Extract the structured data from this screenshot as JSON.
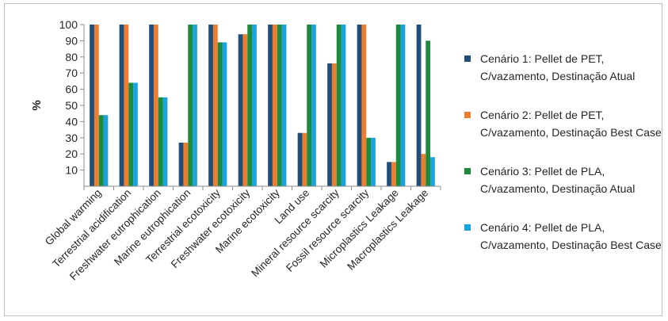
{
  "chart_data": {
    "type": "bar",
    "title": "",
    "xlabel": "",
    "ylabel": "%",
    "ylim": [
      0,
      100
    ],
    "yticks": [
      10,
      20,
      30,
      40,
      50,
      60,
      70,
      80,
      90,
      100
    ],
    "grid": false,
    "legend_position": "right",
    "categories": [
      "Global warming",
      "Terrestrial acidification",
      "Freshwater eutrophication",
      "Marine eutrophication",
      "Terrestrial ecotoxicity",
      "Freshwater ecotoxicity",
      "Marine ecotoxicity",
      "Land use",
      "Mineral resource scarcity",
      "Fossil resource scarcity",
      "Microplastics Leakage",
      "Macroplastics Leakage"
    ],
    "series": [
      {
        "name": "Cenário 1: Pellet de PET, C/vazamento,  Destinação Atual",
        "color": "#1f4e79",
        "values": [
          100,
          100,
          100,
          27,
          100,
          94,
          100,
          33,
          76,
          100,
          15,
          100
        ]
      },
      {
        "name": "Cenário 2: Pellet de PET, C/vazamento,  Destinação Best Case",
        "color": "#ed7d31",
        "values": [
          100,
          100,
          100,
          27,
          100,
          94,
          100,
          33,
          76,
          100,
          15,
          20
        ]
      },
      {
        "name": "Cenário 3: Pellet de PLA, C/vazamento,  Destinação Atual",
        "color": "#1e8a3c",
        "values": [
          44,
          64,
          55,
          100,
          89,
          100,
          100,
          100,
          100,
          30,
          100,
          90
        ]
      },
      {
        "name": "Cenário 4: Pellet de PLA, C/vazamento,  Destinação Best Case",
        "color": "#1aa3dc",
        "values": [
          44,
          64,
          55,
          100,
          89,
          100,
          100,
          100,
          100,
          30,
          100,
          18
        ]
      }
    ]
  }
}
